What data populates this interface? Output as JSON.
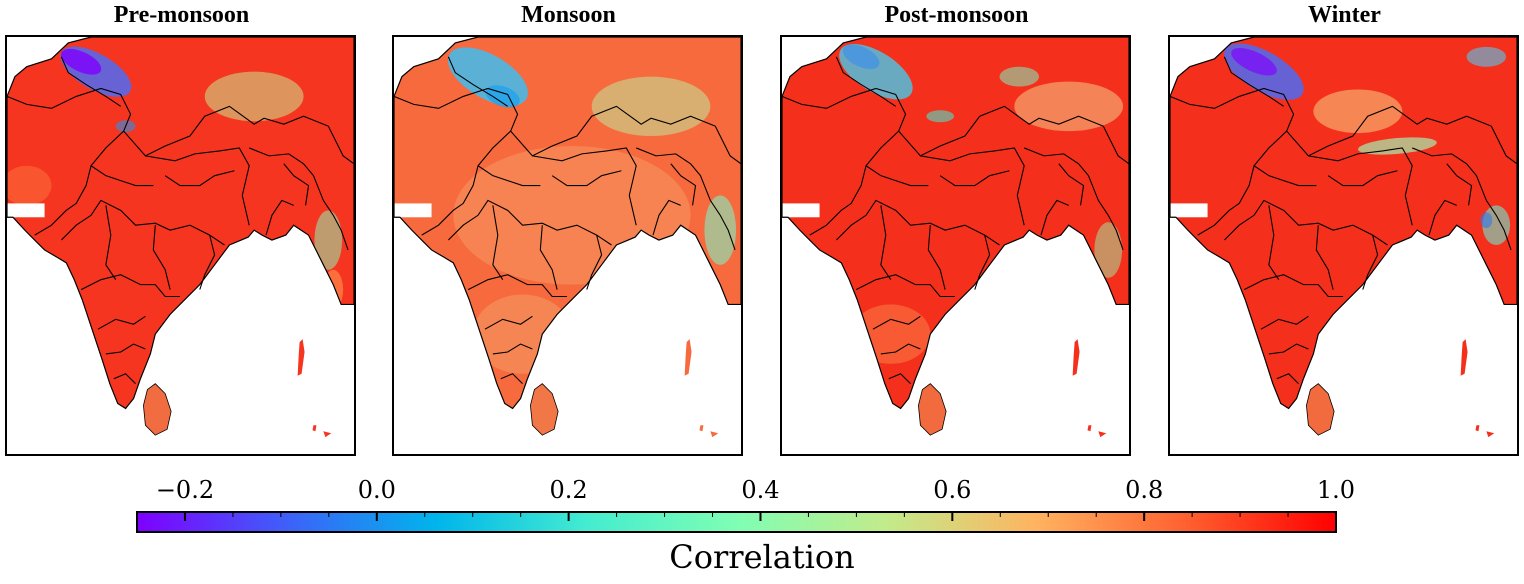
{
  "panels": [
    {
      "title": "Pre-monsoon",
      "mode": "premonsoon"
    },
    {
      "title": "Monsoon",
      "mode": "monsoon"
    },
    {
      "title": "Post-monsoon",
      "mode": "postmonsoon"
    },
    {
      "title": "Winter",
      "mode": "winter"
    }
  ],
  "colorbar": {
    "label": "Correlation",
    "min": -0.25,
    "max": 1.0,
    "tick_labels": [
      "−0.2",
      "0.0",
      "0.2",
      "0.4",
      "0.6",
      "0.8",
      "1.0"
    ],
    "tick_values": [
      -0.2,
      0.0,
      0.2,
      0.4,
      0.6,
      0.8,
      1.0
    ],
    "colormap": "rainbow",
    "stops": [
      "#7f00ff",
      "#3e60f9",
      "#00b5eb",
      "#44ecd0",
      "#7ffeb3",
      "#c2eb8b",
      "#ffb360",
      "#ff6030",
      "#ff0000"
    ]
  }
}
